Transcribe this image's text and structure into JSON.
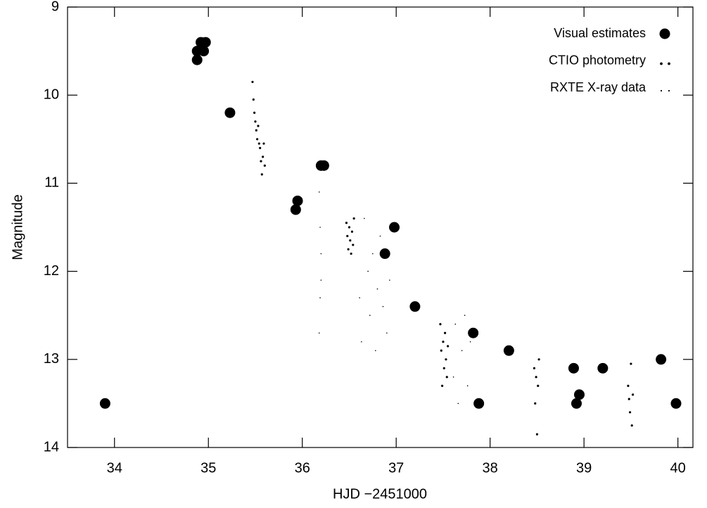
{
  "chart_data": {
    "type": "scatter",
    "x_label": "HJD −2451000",
    "y_label": "Magnitude",
    "xlim": [
      33.5,
      40.16
    ],
    "ylim": [
      14,
      9
    ],
    "xticks": [
      34,
      35,
      36,
      37,
      38,
      39,
      40
    ],
    "yticks": [
      9,
      10,
      11,
      12,
      13,
      14
    ],
    "legend": "top-right",
    "series": [
      {
        "name": "Visual estimates",
        "color": "#000000",
        "marker": "large",
        "x": [
          33.9,
          34.88,
          34.88,
          34.92,
          34.97,
          34.95,
          35.23,
          35.93,
          35.95,
          36.2,
          36.23,
          36.88,
          36.98,
          37.2,
          37.82,
          37.88,
          38.2,
          38.89,
          38.92,
          38.95,
          39.2,
          39.82,
          39.98
        ],
        "values": [
          13.5,
          9.6,
          9.5,
          9.4,
          9.4,
          9.5,
          10.2,
          11.3,
          11.2,
          10.8,
          10.8,
          11.8,
          11.5,
          12.4,
          12.7,
          13.5,
          12.9,
          13.1,
          13.5,
          13.4,
          13.1,
          13.0,
          13.5
        ]
      },
      {
        "name": "CTIO photometry",
        "color": "#000000",
        "marker": "small",
        "x": [
          35.47,
          35.48,
          35.49,
          35.5,
          35.51,
          35.52,
          35.53,
          35.54,
          35.55,
          35.56,
          35.57,
          35.58,
          35.59,
          35.6,
          36.47,
          36.48,
          36.49,
          36.5,
          36.51,
          36.52,
          36.53,
          36.54,
          36.55,
          37.47,
          37.48,
          37.49,
          37.5,
          37.51,
          37.52,
          37.53,
          37.54,
          37.55,
          38.47,
          38.48,
          38.49,
          38.5,
          38.51,
          38.52,
          39.47,
          39.48,
          39.49,
          39.5,
          39.51,
          39.52
        ],
        "values": [
          9.85,
          10.05,
          10.2,
          10.3,
          10.4,
          10.5,
          10.35,
          10.55,
          10.6,
          10.75,
          10.9,
          10.7,
          10.55,
          10.8,
          11.45,
          11.6,
          11.75,
          11.5,
          11.65,
          11.8,
          11.55,
          11.7,
          11.4,
          12.6,
          12.9,
          13.3,
          12.8,
          13.1,
          12.7,
          13.0,
          13.2,
          12.85,
          13.1,
          13.5,
          13.2,
          13.85,
          13.3,
          13.0,
          13.3,
          13.45,
          13.6,
          13.05,
          13.75,
          13.4
        ]
      },
      {
        "name": "RXTE X-ray data",
        "color": "#000000",
        "marker": "tiny",
        "x": [
          36.18,
          36.18,
          36.19,
          36.19,
          36.2,
          36.2,
          36.61,
          36.63,
          36.66,
          36.7,
          36.72,
          36.75,
          36.78,
          36.8,
          36.83,
          36.86,
          36.9,
          36.93,
          37.61,
          37.63,
          37.66,
          37.7,
          37.73,
          37.76,
          37.79
        ],
        "values": [
          11.1,
          12.7,
          11.5,
          12.3,
          11.8,
          12.1,
          12.3,
          12.8,
          11.4,
          12.0,
          12.5,
          11.8,
          12.9,
          12.2,
          11.6,
          12.4,
          12.7,
          12.1,
          13.2,
          12.6,
          13.5,
          12.9,
          12.5,
          13.3,
          12.8
        ]
      }
    ]
  }
}
